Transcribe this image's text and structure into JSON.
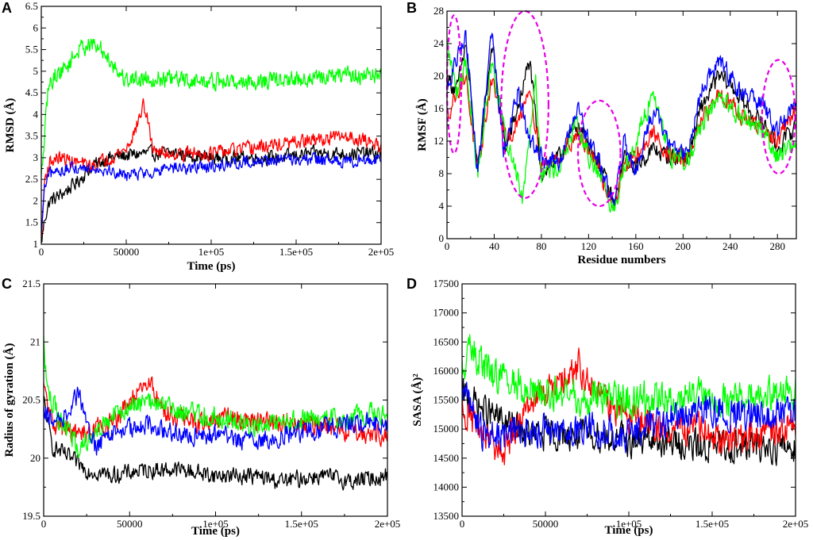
{
  "colors": {
    "black": "#000000",
    "red": "#ff0000",
    "green": "#00ff00",
    "blue": "#0000ff",
    "magenta": "#e800e8"
  },
  "chart_data": [
    {
      "panel": "A",
      "type": "line",
      "xlabel": "Time (ps)",
      "ylabel": "RMSD (Å)",
      "xlim": [
        0,
        200000
      ],
      "ylim": [
        1,
        6.5
      ],
      "xticks": [
        0,
        50000,
        100000,
        150000,
        200000
      ],
      "xtick_labels": [
        "0",
        "50000",
        "1e+05",
        "1.5e+05",
        "2e+05"
      ],
      "yticks": [
        1,
        1.5,
        2,
        2.5,
        3,
        3.5,
        4,
        4.5,
        5,
        5.5,
        6,
        6.5
      ],
      "ytick_labels": [
        "1",
        "1.5",
        "2",
        "2.5",
        "3",
        "3.5",
        "4",
        "4.5",
        "5",
        "5.5",
        "6",
        "6.5"
      ],
      "series": [
        {
          "name": "black",
          "color": "#000000",
          "noise": 0.22,
          "x": [
            0,
            2000,
            5000,
            10000,
            20000,
            30000,
            40000,
            60000,
            80000,
            100000,
            120000,
            140000,
            160000,
            180000,
            200000
          ],
          "y": [
            1.0,
            1.6,
            2.0,
            2.1,
            2.4,
            2.8,
            3.0,
            3.1,
            3.1,
            3.0,
            3.0,
            3.0,
            3.1,
            3.1,
            3.1
          ]
        },
        {
          "name": "red",
          "color": "#ff0000",
          "noise": 0.22,
          "x": [
            0,
            2000,
            5000,
            10000,
            20000,
            30000,
            40000,
            50000,
            55000,
            60000,
            62000,
            65000,
            70000,
            80000,
            100000,
            120000,
            140000,
            160000,
            180000,
            200000
          ],
          "y": [
            1.1,
            2.5,
            2.9,
            3.0,
            2.9,
            2.8,
            3.0,
            3.2,
            3.6,
            4.2,
            4.0,
            3.3,
            3.1,
            3.1,
            3.1,
            3.2,
            3.3,
            3.4,
            3.5,
            3.3
          ]
        },
        {
          "name": "green",
          "color": "#00ff00",
          "noise": 0.28,
          "x": [
            0,
            2000,
            4000,
            8000,
            15000,
            20000,
            25000,
            30000,
            35000,
            40000,
            45000,
            50000,
            60000,
            80000,
            100000,
            120000,
            150000,
            180000,
            200000
          ],
          "y": [
            2.5,
            3.5,
            4.6,
            4.9,
            5.1,
            5.4,
            5.6,
            5.6,
            5.5,
            5.3,
            5.0,
            4.8,
            4.85,
            4.8,
            4.75,
            4.75,
            4.8,
            4.9,
            4.9
          ]
        },
        {
          "name": "blue",
          "color": "#0000ff",
          "noise": 0.2,
          "x": [
            0,
            2000,
            5000,
            10000,
            20000,
            30000,
            40000,
            50000,
            60000,
            80000,
            100000,
            120000,
            140000,
            160000,
            180000,
            200000
          ],
          "y": [
            1.2,
            2.3,
            2.6,
            2.7,
            2.75,
            2.8,
            2.7,
            2.6,
            2.65,
            2.75,
            2.8,
            2.9,
            2.95,
            2.95,
            2.9,
            3.0
          ]
        }
      ]
    },
    {
      "panel": "B",
      "type": "line",
      "xlabel": "Residue numbers",
      "ylabel": "RMSF (Å)",
      "xlim": [
        0,
        296
      ],
      "ylim": [
        0,
        28
      ],
      "xticks": [
        0,
        40,
        80,
        120,
        160,
        200,
        240,
        280
      ],
      "xtick_labels": [
        "0",
        "40",
        "80",
        "120",
        "160",
        "200",
        "240",
        "280"
      ],
      "yticks": [
        0,
        4,
        8,
        12,
        16,
        20,
        24,
        28
      ],
      "ytick_labels": [
        "0",
        "4",
        "8",
        "12",
        "16",
        "20",
        "24",
        "28"
      ],
      "series": [
        {
          "name": "black",
          "color": "#000000",
          "noise": 1.5,
          "x": [
            0,
            8,
            16,
            26,
            38,
            50,
            60,
            70,
            80,
            95,
            110,
            120,
            130,
            142,
            150,
            160,
            175,
            190,
            205,
            215,
            230,
            240,
            250,
            260,
            270,
            280,
            296
          ],
          "y": [
            20,
            18,
            24,
            8,
            24,
            11,
            16,
            22,
            8,
            10,
            14,
            12,
            9,
            4,
            10,
            9,
            11,
            10,
            10,
            16,
            20,
            19,
            17,
            15,
            14,
            11,
            14
          ]
        },
        {
          "name": "red",
          "color": "#ff0000",
          "noise": 1.5,
          "x": [
            0,
            8,
            16,
            26,
            38,
            50,
            60,
            70,
            80,
            95,
            110,
            120,
            130,
            142,
            150,
            160,
            175,
            190,
            205,
            215,
            230,
            240,
            250,
            260,
            270,
            280,
            296
          ],
          "y": [
            15,
            18,
            20,
            8,
            20,
            12,
            14,
            19,
            9,
            10,
            13,
            11,
            8,
            4,
            9,
            10,
            13,
            10,
            10,
            14,
            18,
            17,
            15,
            14,
            13,
            12,
            16
          ]
        },
        {
          "name": "green",
          "color": "#00ff00",
          "noise": 1.7,
          "x": [
            0,
            8,
            16,
            26,
            38,
            50,
            58,
            64,
            75,
            80,
            95,
            110,
            120,
            130,
            142,
            150,
            160,
            175,
            190,
            205,
            215,
            230,
            240,
            250,
            260,
            270,
            280,
            296
          ],
          "y": [
            24,
            18,
            22,
            8,
            22,
            12,
            9,
            5,
            20,
            8,
            9,
            14,
            10,
            8,
            3,
            9,
            12,
            18,
            10,
            10,
            14,
            17,
            16,
            15,
            14,
            13,
            10,
            12
          ]
        },
        {
          "name": "blue",
          "color": "#0000ff",
          "noise": 1.6,
          "x": [
            0,
            8,
            16,
            26,
            38,
            48,
            60,
            70,
            80,
            95,
            110,
            120,
            130,
            142,
            150,
            160,
            175,
            190,
            205,
            215,
            230,
            240,
            250,
            260,
            270,
            280,
            296
          ],
          "y": [
            18,
            22,
            25,
            8,
            26,
            11,
            18,
            12,
            10,
            9,
            16,
            12,
            9,
            4,
            12,
            8,
            16,
            11,
            11,
            18,
            22,
            20,
            18,
            17,
            16,
            13,
            17
          ]
        }
      ],
      "annotations": [
        {
          "cx": 6,
          "cy": 19,
          "rx": 6,
          "ry": 8.5
        },
        {
          "cx": 66,
          "cy": 16.5,
          "rx": 20,
          "ry": 11.5
        },
        {
          "cx": 129,
          "cy": 10.5,
          "rx": 18,
          "ry": 6.5
        },
        {
          "cx": 281,
          "cy": 15,
          "rx": 14,
          "ry": 7
        }
      ]
    },
    {
      "panel": "C",
      "type": "line",
      "xlabel": "Time (ps)",
      "ylabel": "Radius of gyration (Å)",
      "xlim": [
        0,
        200000
      ],
      "ylim": [
        19.5,
        21.5
      ],
      "xticks": [
        0,
        50000,
        100000,
        150000,
        200000
      ],
      "xtick_labels": [
        "0",
        "50000",
        "1e+05",
        "1.5e+05",
        "2e+05"
      ],
      "yticks": [
        19.5,
        20,
        20.5,
        21,
        21.5
      ],
      "ytick_labels": [
        "19.5",
        "20",
        "20.5",
        "21",
        "21.5"
      ],
      "series": [
        {
          "name": "black",
          "color": "#000000",
          "noise": 0.1,
          "x": [
            0,
            5000,
            15000,
            25000,
            40000,
            60000,
            80000,
            100000,
            120000,
            140000,
            160000,
            180000,
            200000
          ],
          "y": [
            20.5,
            20.1,
            20.0,
            19.9,
            19.85,
            19.9,
            19.9,
            19.85,
            19.85,
            19.8,
            19.85,
            19.8,
            19.85
          ]
        },
        {
          "name": "red",
          "color": "#ff0000",
          "noise": 0.12,
          "x": [
            0,
            5000,
            20000,
            40000,
            55000,
            62000,
            70000,
            90000,
            110000,
            130000,
            150000,
            170000,
            200000
          ],
          "y": [
            20.6,
            20.3,
            20.2,
            20.3,
            20.55,
            20.65,
            20.4,
            20.3,
            20.35,
            20.3,
            20.3,
            20.25,
            20.2
          ]
        },
        {
          "name": "green",
          "color": "#00ff00",
          "noise": 0.13,
          "x": [
            0,
            2000,
            10000,
            20000,
            40000,
            60000,
            80000,
            100000,
            120000,
            140000,
            160000,
            180000,
            200000
          ],
          "y": [
            21.0,
            20.6,
            20.3,
            20.1,
            20.35,
            20.5,
            20.4,
            20.35,
            20.3,
            20.3,
            20.35,
            20.35,
            20.4
          ]
        },
        {
          "name": "blue",
          "color": "#0000ff",
          "noise": 0.12,
          "x": [
            0,
            5000,
            15000,
            20000,
            30000,
            40000,
            60000,
            80000,
            100000,
            120000,
            140000,
            160000,
            180000,
            200000
          ],
          "y": [
            20.4,
            20.3,
            20.4,
            20.55,
            20.1,
            20.2,
            20.3,
            20.2,
            20.2,
            20.15,
            20.2,
            20.25,
            20.3,
            20.3
          ]
        }
      ]
    },
    {
      "panel": "D",
      "type": "line",
      "xlabel": "Time (ps)",
      "ylabel": "SASA (Å)²",
      "xlim": [
        0,
        200000
      ],
      "ylim": [
        13500,
        17500
      ],
      "xticks": [
        0,
        50000,
        100000,
        150000,
        200000
      ],
      "xtick_labels": [
        "0",
        "50000",
        "1e+05",
        "1.5e+05",
        "2e+05"
      ],
      "yticks": [
        13500,
        14000,
        14500,
        15000,
        15500,
        16000,
        16500,
        17000,
        17500
      ],
      "ytick_labels": [
        "13500",
        "14000",
        "14500",
        "15000",
        "15500",
        "16000",
        "16500",
        "17000",
        "17500"
      ],
      "series": [
        {
          "name": "black",
          "color": "#000000",
          "noise": 380,
          "x": [
            0,
            20000,
            40000,
            60000,
            80000,
            100000,
            120000,
            140000,
            160000,
            180000,
            200000
          ],
          "y": [
            15600,
            15200,
            14900,
            14900,
            14900,
            14800,
            14800,
            14700,
            14700,
            14700,
            14700
          ]
        },
        {
          "name": "red",
          "color": "#ff0000",
          "noise": 380,
          "x": [
            0,
            15000,
            25000,
            40000,
            60000,
            70000,
            80000,
            100000,
            120000,
            140000,
            160000,
            180000,
            200000
          ],
          "y": [
            15400,
            14800,
            14600,
            15500,
            15800,
            16100,
            15600,
            15200,
            15000,
            15000,
            14800,
            14900,
            15100
          ]
        },
        {
          "name": "green",
          "color": "#00ff00",
          "noise": 420,
          "x": [
            0,
            5000,
            10000,
            20000,
            40000,
            60000,
            80000,
            100000,
            120000,
            140000,
            160000,
            180000,
            200000
          ],
          "y": [
            16000,
            16400,
            16200,
            15900,
            15700,
            15600,
            15500,
            15500,
            15500,
            15600,
            15500,
            15600,
            15600
          ]
        },
        {
          "name": "blue",
          "color": "#0000ff",
          "noise": 400,
          "x": [
            0,
            10000,
            20000,
            40000,
            60000,
            80000,
            100000,
            120000,
            140000,
            160000,
            180000,
            200000
          ],
          "y": [
            15700,
            15000,
            14900,
            15000,
            15000,
            15000,
            14900,
            15100,
            15300,
            15300,
            15200,
            15300
          ]
        }
      ]
    }
  ]
}
